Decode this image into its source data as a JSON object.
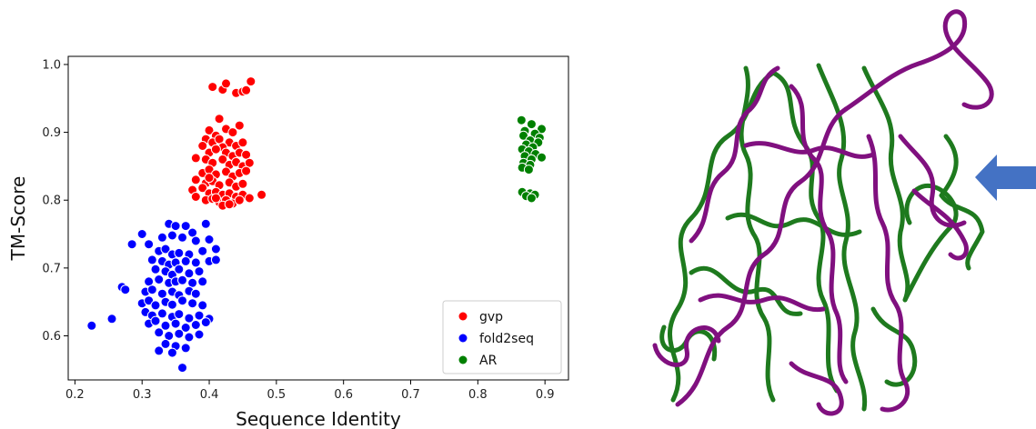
{
  "chart_data": {
    "type": "scatter",
    "xlabel": "Sequence Identity",
    "ylabel": "TM-Score",
    "xlim": [
      0.19,
      0.935
    ],
    "ylim": [
      0.535,
      1.012
    ],
    "xticks": [
      "0.2",
      "0.3",
      "0.4",
      "0.5",
      "0.6",
      "0.7",
      "0.8",
      "0.9"
    ],
    "yticks": [
      "0.6",
      "0.7",
      "0.8",
      "0.9",
      "1.0"
    ],
    "grid": false,
    "legend_position": "lower-right",
    "series": [
      {
        "name": "gvp",
        "color": "#ff0000",
        "points": [
          [
            0.405,
            0.967
          ],
          [
            0.42,
            0.963
          ],
          [
            0.425,
            0.972
          ],
          [
            0.44,
            0.958
          ],
          [
            0.45,
            0.96
          ],
          [
            0.462,
            0.975
          ],
          [
            0.455,
            0.962
          ],
          [
            0.415,
            0.92
          ],
          [
            0.4,
            0.903
          ],
          [
            0.41,
            0.895
          ],
          [
            0.425,
            0.905
          ],
          [
            0.435,
            0.9
          ],
          [
            0.445,
            0.91
          ],
          [
            0.395,
            0.89
          ],
          [
            0.405,
            0.885
          ],
          [
            0.415,
            0.89
          ],
          [
            0.43,
            0.885
          ],
          [
            0.44,
            0.88
          ],
          [
            0.45,
            0.885
          ],
          [
            0.42,
            0.878
          ],
          [
            0.39,
            0.88
          ],
          [
            0.4,
            0.87
          ],
          [
            0.41,
            0.875
          ],
          [
            0.425,
            0.87
          ],
          [
            0.435,
            0.865
          ],
          [
            0.445,
            0.87
          ],
          [
            0.455,
            0.867
          ],
          [
            0.38,
            0.862
          ],
          [
            0.395,
            0.86
          ],
          [
            0.405,
            0.855
          ],
          [
            0.42,
            0.86
          ],
          [
            0.43,
            0.852
          ],
          [
            0.44,
            0.856
          ],
          [
            0.45,
            0.85
          ],
          [
            0.46,
            0.855
          ],
          [
            0.39,
            0.84
          ],
          [
            0.4,
            0.845
          ],
          [
            0.41,
            0.838
          ],
          [
            0.425,
            0.842
          ],
          [
            0.435,
            0.835
          ],
          [
            0.445,
            0.84
          ],
          [
            0.455,
            0.843
          ],
          [
            0.38,
            0.83
          ],
          [
            0.395,
            0.825
          ],
          [
            0.405,
            0.828
          ],
          [
            0.415,
            0.822
          ],
          [
            0.43,
            0.826
          ],
          [
            0.44,
            0.82
          ],
          [
            0.45,
            0.824
          ],
          [
            0.375,
            0.815
          ],
          [
            0.39,
            0.818
          ],
          [
            0.4,
            0.81
          ],
          [
            0.41,
            0.812
          ],
          [
            0.42,
            0.808
          ],
          [
            0.43,
            0.81
          ],
          [
            0.44,
            0.805
          ],
          [
            0.45,
            0.808
          ],
          [
            0.46,
            0.803
          ],
          [
            0.478,
            0.808
          ],
          [
            0.38,
            0.805
          ],
          [
            0.395,
            0.8
          ],
          [
            0.405,
            0.802
          ],
          [
            0.415,
            0.797
          ],
          [
            0.425,
            0.8
          ],
          [
            0.435,
            0.795
          ],
          [
            0.445,
            0.8
          ],
          [
            0.42,
            0.792
          ],
          [
            0.43,
            0.794
          ],
          [
            0.41,
            0.803
          ],
          [
            0.4,
            0.833
          ]
        ]
      },
      {
        "name": "fold2seq",
        "color": "#0000ff",
        "points": [
          [
            0.225,
            0.615
          ],
          [
            0.255,
            0.625
          ],
          [
            0.27,
            0.672
          ],
          [
            0.275,
            0.668
          ],
          [
            0.285,
            0.735
          ],
          [
            0.3,
            0.75
          ],
          [
            0.31,
            0.735
          ],
          [
            0.34,
            0.765
          ],
          [
            0.35,
            0.762
          ],
          [
            0.365,
            0.762
          ],
          [
            0.375,
            0.752
          ],
          [
            0.395,
            0.765
          ],
          [
            0.33,
            0.745
          ],
          [
            0.345,
            0.748
          ],
          [
            0.36,
            0.745
          ],
          [
            0.38,
            0.74
          ],
          [
            0.4,
            0.742
          ],
          [
            0.41,
            0.728
          ],
          [
            0.325,
            0.725
          ],
          [
            0.335,
            0.728
          ],
          [
            0.345,
            0.72
          ],
          [
            0.355,
            0.722
          ],
          [
            0.37,
            0.72
          ],
          [
            0.39,
            0.725
          ],
          [
            0.315,
            0.712
          ],
          [
            0.33,
            0.71
          ],
          [
            0.34,
            0.705
          ],
          [
            0.35,
            0.708
          ],
          [
            0.365,
            0.71
          ],
          [
            0.38,
            0.708
          ],
          [
            0.4,
            0.71
          ],
          [
            0.41,
            0.712
          ],
          [
            0.32,
            0.698
          ],
          [
            0.335,
            0.695
          ],
          [
            0.345,
            0.69
          ],
          [
            0.355,
            0.698
          ],
          [
            0.37,
            0.692
          ],
          [
            0.385,
            0.695
          ],
          [
            0.31,
            0.68
          ],
          [
            0.325,
            0.683
          ],
          [
            0.34,
            0.678
          ],
          [
            0.35,
            0.68
          ],
          [
            0.36,
            0.682
          ],
          [
            0.375,
            0.678
          ],
          [
            0.39,
            0.68
          ],
          [
            0.305,
            0.665
          ],
          [
            0.315,
            0.668
          ],
          [
            0.33,
            0.662
          ],
          [
            0.345,
            0.665
          ],
          [
            0.355,
            0.66
          ],
          [
            0.37,
            0.666
          ],
          [
            0.38,
            0.662
          ],
          [
            0.3,
            0.648
          ],
          [
            0.31,
            0.652
          ],
          [
            0.32,
            0.645
          ],
          [
            0.335,
            0.65
          ],
          [
            0.345,
            0.646
          ],
          [
            0.36,
            0.652
          ],
          [
            0.375,
            0.648
          ],
          [
            0.39,
            0.645
          ],
          [
            0.305,
            0.635
          ],
          [
            0.315,
            0.63
          ],
          [
            0.33,
            0.633
          ],
          [
            0.345,
            0.628
          ],
          [
            0.355,
            0.632
          ],
          [
            0.37,
            0.626
          ],
          [
            0.385,
            0.63
          ],
          [
            0.4,
            0.625
          ],
          [
            0.31,
            0.618
          ],
          [
            0.32,
            0.622
          ],
          [
            0.335,
            0.615
          ],
          [
            0.35,
            0.618
          ],
          [
            0.365,
            0.612
          ],
          [
            0.38,
            0.616
          ],
          [
            0.395,
            0.62
          ],
          [
            0.325,
            0.605
          ],
          [
            0.34,
            0.6
          ],
          [
            0.355,
            0.603
          ],
          [
            0.37,
            0.598
          ],
          [
            0.385,
            0.602
          ],
          [
            0.335,
            0.588
          ],
          [
            0.35,
            0.585
          ],
          [
            0.365,
            0.582
          ],
          [
            0.325,
            0.578
          ],
          [
            0.345,
            0.575
          ],
          [
            0.36,
            0.553
          ]
        ]
      },
      {
        "name": "AR",
        "color": "#008000",
        "points": [
          [
            0.865,
            0.918
          ],
          [
            0.88,
            0.912
          ],
          [
            0.895,
            0.905
          ],
          [
            0.87,
            0.902
          ],
          [
            0.885,
            0.898
          ],
          [
            0.892,
            0.892
          ],
          [
            0.868,
            0.895
          ],
          [
            0.878,
            0.888
          ],
          [
            0.89,
            0.885
          ],
          [
            0.872,
            0.882
          ],
          [
            0.882,
            0.878
          ],
          [
            0.866,
            0.875
          ],
          [
            0.876,
            0.872
          ],
          [
            0.886,
            0.868
          ],
          [
            0.87,
            0.865
          ],
          [
            0.88,
            0.86
          ],
          [
            0.895,
            0.863
          ],
          [
            0.868,
            0.855
          ],
          [
            0.878,
            0.852
          ],
          [
            0.866,
            0.848
          ],
          [
            0.876,
            0.845
          ],
          [
            0.866,
            0.812
          ],
          [
            0.878,
            0.81
          ],
          [
            0.885,
            0.808
          ],
          [
            0.872,
            0.806
          ],
          [
            0.88,
            0.803
          ]
        ]
      }
    ]
  }
}
